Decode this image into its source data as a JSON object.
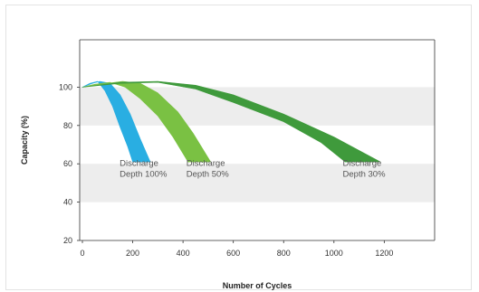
{
  "chart_data": {
    "type": "area",
    "title": "",
    "xlabel": "Number of Cycles",
    "ylabel": "Capacity (%)",
    "xlim": [
      0,
      1400
    ],
    "ylim": [
      20,
      120
    ],
    "x_ticks": [
      "0",
      "200",
      "400",
      "600",
      "800",
      "1000",
      "1200"
    ],
    "y_ticks": [
      "20",
      "40",
      "60",
      "80",
      "100"
    ],
    "grid": false,
    "bands": [
      [
        80,
        100
      ],
      [
        40,
        60
      ]
    ],
    "colors": {
      "band": "#ededed",
      "axis": "#333333"
    },
    "series": [
      {
        "color": "#29aee2",
        "upper": [
          [
            0,
            100
          ],
          [
            40,
            102
          ],
          [
            70,
            103
          ],
          [
            110,
            102
          ],
          [
            150,
            96
          ],
          [
            190,
            86
          ],
          [
            230,
            73
          ],
          [
            270,
            61
          ]
        ],
        "lower": [
          [
            0,
            100
          ],
          [
            30,
            102
          ],
          [
            60,
            103
          ],
          [
            90,
            98
          ],
          [
            120,
            90
          ],
          [
            150,
            79
          ],
          [
            180,
            69
          ],
          [
            200,
            61
          ]
        ]
      },
      {
        "color": "#7ac143",
        "upper": [
          [
            0,
            100
          ],
          [
            100,
            102
          ],
          [
            160,
            103
          ],
          [
            230,
            102
          ],
          [
            300,
            97
          ],
          [
            380,
            87
          ],
          [
            440,
            76
          ],
          [
            510,
            61
          ]
        ],
        "lower": [
          [
            0,
            100
          ],
          [
            50,
            101.5
          ],
          [
            110,
            102.5
          ],
          [
            170,
            100
          ],
          [
            230,
            94
          ],
          [
            300,
            85
          ],
          [
            360,
            74
          ],
          [
            420,
            61
          ]
        ]
      },
      {
        "color": "#3f9a3c",
        "upper": [
          [
            0,
            100
          ],
          [
            150,
            102.5
          ],
          [
            300,
            103
          ],
          [
            450,
            101
          ],
          [
            600,
            96
          ],
          [
            800,
            86
          ],
          [
            1000,
            74
          ],
          [
            1185,
            61
          ]
        ],
        "lower": [
          [
            0,
            100
          ],
          [
            150,
            102
          ],
          [
            300,
            102.5
          ],
          [
            450,
            99
          ],
          [
            600,
            92
          ],
          [
            800,
            82
          ],
          [
            950,
            71
          ],
          [
            1045,
            61
          ]
        ]
      }
    ],
    "annotations": [
      {
        "text": [
          "Discharge",
          "Depth 100%"
        ],
        "x": 148,
        "y": 59
      },
      {
        "text": [
          "Discharge",
          "Depth 50%"
        ],
        "x": 413,
        "y": 59
      },
      {
        "text": [
          "Discharge",
          "Depth 30%"
        ],
        "x": 1035,
        "y": 59
      }
    ]
  }
}
